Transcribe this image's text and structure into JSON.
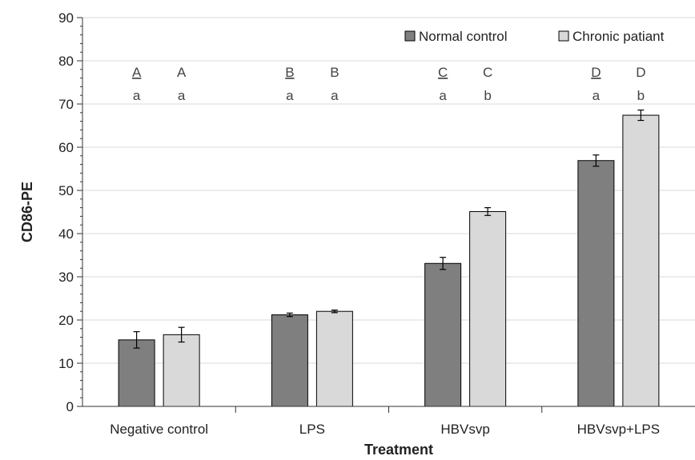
{
  "chart_data": {
    "type": "bar",
    "title": "",
    "xlabel": "Treatment",
    "ylabel": "CD86-PE",
    "ylim": [
      0,
      90
    ],
    "yticks": [
      0,
      10,
      20,
      30,
      40,
      50,
      60,
      70,
      80,
      90
    ],
    "grid": true,
    "legend_position": "top-right",
    "categories": [
      "Negative control",
      "LPS",
      "HBVsvp",
      "HBVsvp+LPS"
    ],
    "series": [
      {
        "name": "Normal control",
        "color": "#7f7f7f",
        "values": [
          15.4,
          21.2,
          33.1,
          56.9
        ],
        "errors": [
          1.9,
          0.4,
          1.4,
          1.3
        ],
        "upper_labels": [
          "A",
          "B",
          "C",
          "D"
        ],
        "upper_labels_underlined": true,
        "lower_labels": [
          "a",
          "a",
          "a",
          "a"
        ]
      },
      {
        "name": "Chronic patiant",
        "color": "#d9d9d9",
        "values": [
          16.6,
          22.0,
          45.1,
          67.4
        ],
        "errors": [
          1.7,
          0.3,
          0.9,
          1.2
        ],
        "upper_labels": [
          "A",
          "B",
          "C",
          "D"
        ],
        "upper_labels_underlined": false,
        "lower_labels": [
          "a",
          "a",
          "b",
          "b"
        ]
      }
    ]
  }
}
